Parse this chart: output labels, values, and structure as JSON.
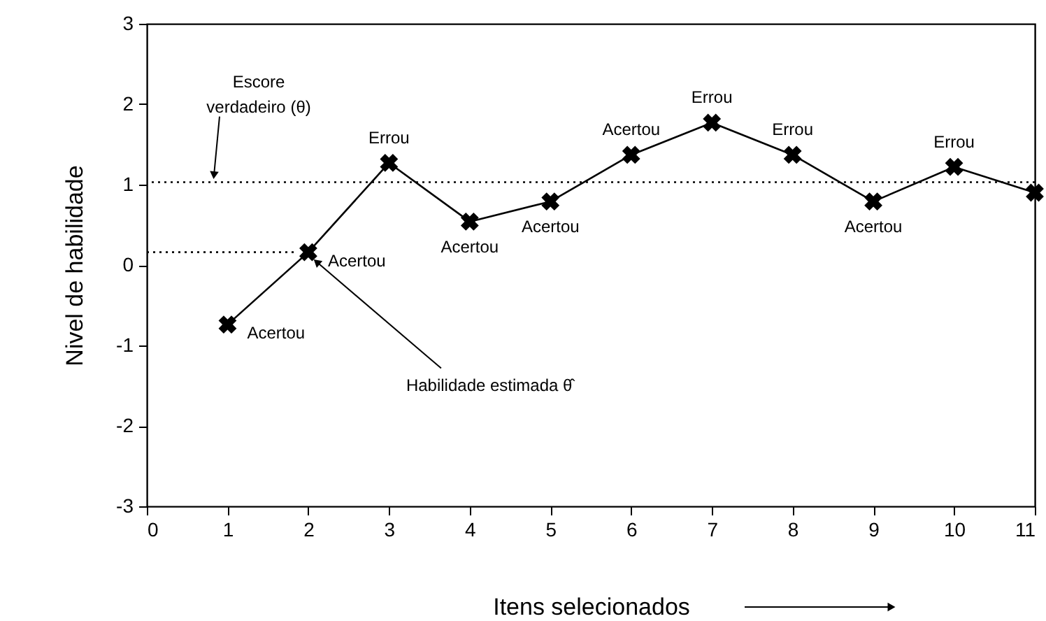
{
  "chart_data": {
    "type": "line",
    "xlabel": "Itens selecionados",
    "ylabel": "Nivel de habilidade",
    "xlim": [
      0,
      11
    ],
    "xticks": [
      0,
      1,
      2,
      3,
      4,
      5,
      6,
      7,
      8,
      9,
      10,
      11
    ],
    "ylim": [
      -3,
      3
    ],
    "yticks": [
      -3,
      -2,
      -1,
      0,
      1,
      2,
      3
    ],
    "marker": "cross",
    "series": [
      {
        "color": "#000000",
        "line_style": "solid",
        "x": [
          1,
          2,
          3,
          4,
          5,
          6,
          7,
          8,
          9,
          10,
          11
        ],
        "values": [
          -0.74,
          0.16,
          1.27,
          0.54,
          0.79,
          1.37,
          1.77,
          1.37,
          0.79,
          1.22,
          0.9
        ],
        "value_labels": [
          "Acertou",
          "Acertou",
          "Errou",
          "Acertou",
          "Acertou",
          "Acertou",
          "Errou",
          "Errou",
          "Acertou",
          "Errou",
          null
        ]
      },
      {
        "color": "#000000",
        "line_style": "dotted",
        "marker": "none",
        "x": [
          0,
          1.85
        ],
        "values": [
          0.16,
          0.16
        ]
      }
    ],
    "ref_lines": [
      {
        "axis": "y",
        "value": 1.03,
        "label": "Escore verdadeiro (θ)",
        "line_style": "dotted",
        "color": "#000000"
      }
    ],
    "annotations": [
      {
        "text": "Habilidade estimada θ̂",
        "x": 2,
        "y": 0.16
      }
    ]
  }
}
